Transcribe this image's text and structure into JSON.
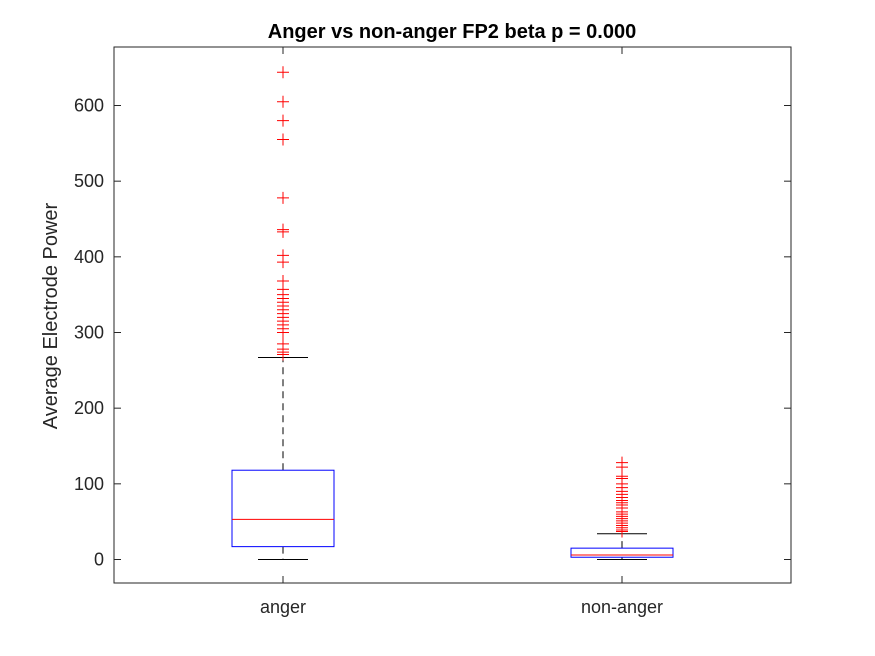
{
  "chart_data": {
    "type": "boxplot",
    "title": "Anger vs non-anger FP2 beta p = 0.000",
    "xlabel": "",
    "ylabel": "Average Electrode Power",
    "ylim": [
      -30,
      680
    ],
    "yticks": [
      0,
      100,
      200,
      300,
      400,
      500,
      600
    ],
    "grid": false,
    "categories": [
      "anger",
      "non-anger"
    ],
    "boxes": [
      {
        "category": "anger",
        "whisker_low": 0,
        "q1": 17,
        "median": 53,
        "q3": 118,
        "whisker_high": 267,
        "outliers": [
          644,
          605,
          580,
          555,
          478,
          436,
          433,
          402,
          393,
          368,
          357,
          350,
          345,
          340,
          335,
          330,
          325,
          320,
          315,
          310,
          305,
          300,
          285,
          278,
          274,
          271
        ]
      },
      {
        "category": "non-anger",
        "whisker_low": 0,
        "q1": 3,
        "median": 6,
        "q3": 15,
        "whisker_high": 34,
        "outliers": [
          128,
          122,
          110,
          107,
          100,
          95,
          90,
          86,
          82,
          78,
          75,
          72,
          68,
          63,
          60,
          57,
          54,
          51,
          48,
          45,
          42,
          39,
          37
        ]
      }
    ],
    "colors": {
      "box": "#0000ff",
      "median": "#ff0000",
      "whisker": "#000000",
      "outlier": "#ff0000",
      "axes": "#262626"
    }
  }
}
